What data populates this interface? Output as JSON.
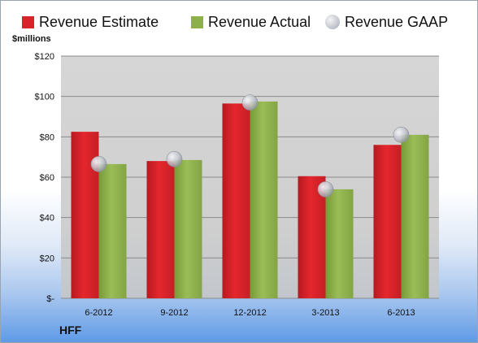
{
  "chart_data": {
    "type": "bar",
    "categories": [
      "6-2012",
      "9-2012",
      "12-2012",
      "3-2013",
      "6-2013"
    ],
    "series": [
      {
        "name": "Revenue Estimate",
        "values": [
          82.5,
          68,
          96.5,
          60.5,
          76
        ],
        "color": "#d8232a"
      },
      {
        "name": "Revenue Actual",
        "values": [
          66.5,
          68.5,
          97.5,
          54,
          81
        ],
        "color": "#8db04a"
      },
      {
        "name": "Revenue GAAP",
        "values": [
          66.5,
          69,
          97,
          54,
          81
        ],
        "color": "#c4c7ce",
        "style": "bubble"
      }
    ],
    "ylabel": "$millions",
    "ylim": [
      0,
      120
    ],
    "yticks": [
      0,
      20,
      40,
      60,
      80,
      100,
      120
    ],
    "ytick_labels": [
      "$-",
      "$20",
      "$40",
      "$60",
      "$80",
      "$100",
      "$120"
    ],
    "grid": true,
    "legend": "top"
  },
  "footer": {
    "company": "HFF"
  }
}
